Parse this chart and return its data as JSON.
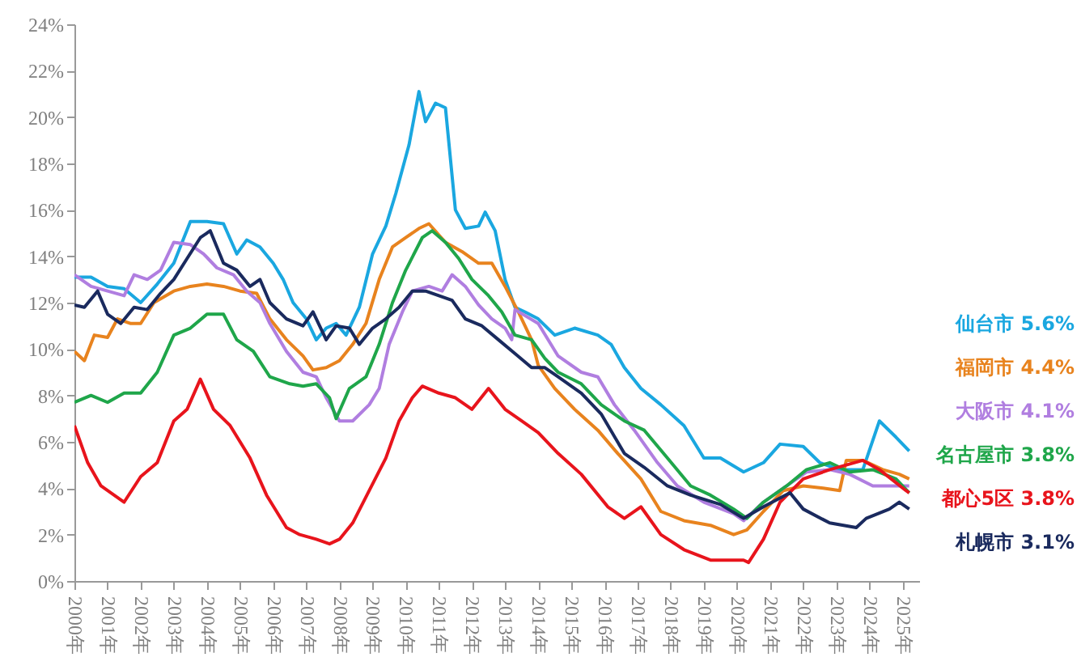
{
  "chart_data": {
    "type": "line",
    "xlim": [
      2000,
      2025.5
    ],
    "xticks": [
      {
        "value": 2000,
        "label": "2000年"
      },
      {
        "value": 2001,
        "label": "2001年"
      },
      {
        "value": 2002,
        "label": "2002年"
      },
      {
        "value": 2003,
        "label": "2003年"
      },
      {
        "value": 2004,
        "label": "2004年"
      },
      {
        "value": 2005,
        "label": "2005年"
      },
      {
        "value": 2006,
        "label": "2006年"
      },
      {
        "value": 2007,
        "label": "2007年"
      },
      {
        "value": 2008,
        "label": "2008年"
      },
      {
        "value": 2009,
        "label": "2009年"
      },
      {
        "value": 2010,
        "label": "2010年"
      },
      {
        "value": 2011,
        "label": "2011年"
      },
      {
        "value": 2012,
        "label": "2012年"
      },
      {
        "value": 2013,
        "label": "2013年"
      },
      {
        "value": 2014,
        "label": "2014年"
      },
      {
        "value": 2015,
        "label": "2015年"
      },
      {
        "value": 2016,
        "label": "2016年"
      },
      {
        "value": 2017,
        "label": "2017年"
      },
      {
        "value": 2018,
        "label": "2018年"
      },
      {
        "value": 2019,
        "label": "2019年"
      },
      {
        "value": 2020,
        "label": "2020年"
      },
      {
        "value": 2021,
        "label": "2021年"
      },
      {
        "value": 2022,
        "label": "2022年"
      },
      {
        "value": 2023,
        "label": "2023年"
      },
      {
        "value": 2024,
        "label": "2024年"
      },
      {
        "value": 2025,
        "label": "2025年"
      }
    ],
    "ylim": [
      0,
      24
    ],
    "yticks": [
      {
        "value": 0,
        "label": "0%"
      },
      {
        "value": 2,
        "label": "2%"
      },
      {
        "value": 4,
        "label": "4%"
      },
      {
        "value": 6,
        "label": "6%"
      },
      {
        "value": 8,
        "label": "8%"
      },
      {
        "value": 10,
        "label": "10%"
      },
      {
        "value": 12,
        "label": "12%"
      },
      {
        "value": 14,
        "label": "14%"
      },
      {
        "value": 16,
        "label": "16%"
      },
      {
        "value": 18,
        "label": "18%"
      },
      {
        "value": 20,
        "label": "20%"
      },
      {
        "value": 22,
        "label": "22%"
      },
      {
        "value": 24,
        "label": "24%"
      }
    ],
    "grid": false,
    "legend": false,
    "marker": "none",
    "line_style": "solid",
    "series": [
      {
        "name": "仙台市 5.6%",
        "color": "#1aa7e0",
        "x": [
          2000,
          2000.5,
          2001,
          2001.5,
          2002,
          2002.5,
          2003,
          2003.5,
          2004,
          2004.5,
          2004.9,
          2005.2,
          2005.6,
          2006,
          2006.3,
          2006.6,
          2007,
          2007.3,
          2007.6,
          2007.9,
          2008.2,
          2008.6,
          2009,
          2009.4,
          2009.7,
          2010.1,
          2010.4,
          2010.6,
          2010.9,
          2011.2,
          2011.5,
          2011.8,
          2012.2,
          2012.4,
          2012.7,
          2013,
          2013.3,
          2013.6,
          2014,
          2014.5,
          2015.1,
          2015.8,
          2016.2,
          2016.6,
          2017.1,
          2017.7,
          2018.4,
          2019,
          2019.5,
          2020.2,
          2020.8,
          2021.3,
          2022,
          2022.5,
          2023.1,
          2023.8,
          2024.3,
          2024.8,
          2025.2
        ],
        "values": [
          13.1,
          13.1,
          12.7,
          12.6,
          12.0,
          12.8,
          13.7,
          15.5,
          15.5,
          15.4,
          14.1,
          14.7,
          14.4,
          13.7,
          13.0,
          12.0,
          11.3,
          10.4,
          10.9,
          11.1,
          10.6,
          11.8,
          14.1,
          15.3,
          16.7,
          18.8,
          21.1,
          19.8,
          20.6,
          20.4,
          16.0,
          15.2,
          15.3,
          15.9,
          15.1,
          13.0,
          11.8,
          11.6,
          11.3,
          10.6,
          10.9,
          10.6,
          10.2,
          9.2,
          8.3,
          7.6,
          6.7,
          5.3,
          5.3,
          4.7,
          5.1,
          5.9,
          5.8,
          5.1,
          4.8,
          4.8,
          6.9,
          6.2,
          5.6
        ]
      },
      {
        "name": "福岡市 4.4%",
        "color": "#e8831e",
        "x": [
          2000,
          2000.3,
          2000.6,
          2001,
          2001.3,
          2001.7,
          2002,
          2002.4,
          2003,
          2003.5,
          2004,
          2004.5,
          2005,
          2005.5,
          2005.9,
          2006.4,
          2006.9,
          2007.2,
          2007.6,
          2008,
          2008.4,
          2008.8,
          2009.2,
          2009.6,
          2010,
          2010.4,
          2010.7,
          2011.2,
          2011.7,
          2012.2,
          2012.6,
          2013,
          2013.4,
          2013.8,
          2014,
          2014.5,
          2015.1,
          2015.8,
          2016.4,
          2017.1,
          2017.7,
          2018.4,
          2019.2,
          2019.9,
          2020.3,
          2020.8,
          2021.4,
          2022,
          2022.6,
          2023.1,
          2023.3,
          2023.8,
          2024.4,
          2024.9,
          2025.2
        ],
        "values": [
          9.9,
          9.5,
          10.6,
          10.5,
          11.3,
          11.1,
          11.1,
          12.0,
          12.5,
          12.7,
          12.8,
          12.7,
          12.5,
          12.4,
          11.3,
          10.4,
          9.7,
          9.1,
          9.2,
          9.5,
          10.2,
          11.1,
          13.0,
          14.4,
          14.8,
          15.2,
          15.4,
          14.6,
          14.2,
          13.7,
          13.7,
          12.7,
          11.6,
          10.4,
          9.3,
          8.3,
          7.4,
          6.5,
          5.5,
          4.4,
          3.0,
          2.6,
          2.4,
          2.0,
          2.2,
          3.0,
          3.9,
          4.1,
          4.0,
          3.9,
          5.2,
          5.2,
          4.8,
          4.6,
          4.4
        ]
      },
      {
        "name": "大阪市 4.1%",
        "color": "#b07ee0",
        "x": [
          2000,
          2000.5,
          2001,
          2001.5,
          2001.8,
          2002.2,
          2002.6,
          2003,
          2003.5,
          2003.9,
          2004.3,
          2004.8,
          2005.2,
          2005.6,
          2005.9,
          2006.4,
          2006.9,
          2007.3,
          2007.6,
          2008,
          2008.4,
          2008.9,
          2009.2,
          2009.5,
          2009.9,
          2010.2,
          2010.7,
          2011.1,
          2011.4,
          2011.8,
          2012.2,
          2012.6,
          2013,
          2013.2,
          2013.3,
          2014,
          2014.6,
          2015.3,
          2015.8,
          2016.3,
          2016.9,
          2017.6,
          2018.2,
          2019,
          2019.9,
          2020.2,
          2020.8,
          2021.5,
          2022.1,
          2022.8,
          2023.4,
          2024.1,
          2024.8,
          2025.2
        ],
        "values": [
          13.2,
          12.7,
          12.5,
          12.3,
          13.2,
          13.0,
          13.4,
          14.6,
          14.5,
          14.1,
          13.5,
          13.2,
          12.5,
          12.0,
          11.1,
          9.9,
          9.0,
          8.8,
          7.9,
          6.9,
          6.9,
          7.6,
          8.3,
          10.2,
          11.6,
          12.5,
          12.7,
          12.5,
          13.2,
          12.7,
          11.9,
          11.3,
          10.9,
          10.4,
          11.7,
          11.1,
          9.7,
          9.0,
          8.8,
          7.6,
          6.5,
          5.1,
          4.1,
          3.4,
          2.9,
          2.6,
          3.4,
          4.1,
          4.7,
          4.8,
          4.6,
          4.1,
          4.1,
          4.1
        ]
      },
      {
        "name": "名古屋市 3.8%",
        "color": "#1fa64a",
        "x": [
          2000,
          2000.5,
          2001,
          2001.5,
          2002,
          2002.5,
          2003,
          2003.5,
          2004,
          2004.5,
          2004.9,
          2005.4,
          2005.9,
          2006.5,
          2006.9,
          2007.3,
          2007.7,
          2007.9,
          2008.3,
          2008.8,
          2009.2,
          2009.6,
          2010,
          2010.5,
          2010.8,
          2011.2,
          2011.6,
          2012,
          2012.5,
          2012.9,
          2013.3,
          2013.8,
          2014.2,
          2014.6,
          2015.3,
          2015.9,
          2016.6,
          2017.2,
          2017.9,
          2018.6,
          2019.2,
          2019.9,
          2020.3,
          2020.8,
          2021.5,
          2022.1,
          2022.8,
          2023.4,
          2024.1,
          2024.8,
          2025.2
        ],
        "values": [
          7.7,
          8.0,
          7.7,
          8.1,
          8.1,
          9.0,
          10.6,
          10.9,
          11.5,
          11.5,
          10.4,
          9.9,
          8.8,
          8.5,
          8.4,
          8.5,
          7.9,
          7.0,
          8.3,
          8.8,
          10.2,
          12.0,
          13.4,
          14.8,
          15.1,
          14.6,
          13.9,
          13.0,
          12.3,
          11.6,
          10.6,
          10.4,
          9.6,
          9.0,
          8.5,
          7.6,
          6.9,
          6.5,
          5.3,
          4.1,
          3.7,
          3.1,
          2.7,
          3.4,
          4.1,
          4.8,
          5.1,
          4.7,
          4.8,
          4.4,
          3.8
        ]
      },
      {
        "name": "都心5区 3.8%",
        "color": "#e8141c",
        "x": [
          2000,
          2000.4,
          2000.8,
          2001.5,
          2002,
          2002.5,
          2003,
          2003.4,
          2003.8,
          2004.2,
          2004.7,
          2005.3,
          2005.8,
          2006.4,
          2006.8,
          2007.3,
          2007.7,
          2008,
          2008.4,
          2008.9,
          2009.4,
          2009.8,
          2010.2,
          2010.5,
          2011,
          2011.5,
          2012,
          2012.5,
          2013,
          2013.5,
          2014,
          2014.6,
          2015.3,
          2016.1,
          2016.6,
          2017.1,
          2017.7,
          2018.4,
          2019.2,
          2020.2,
          2020.35,
          2020.8,
          2021.3,
          2022,
          2022.8,
          2023.8,
          2024.3,
          2025.1,
          2025.2
        ],
        "values": [
          6.7,
          5.1,
          4.1,
          3.4,
          4.5,
          5.1,
          6.9,
          7.4,
          8.7,
          7.4,
          6.7,
          5.3,
          3.7,
          2.3,
          2.0,
          1.8,
          1.6,
          1.8,
          2.5,
          3.9,
          5.3,
          6.9,
          7.9,
          8.4,
          8.1,
          7.9,
          7.4,
          8.3,
          7.4,
          6.9,
          6.4,
          5.5,
          4.6,
          3.2,
          2.7,
          3.2,
          2.0,
          1.35,
          0.9,
          0.9,
          0.8,
          1.8,
          3.4,
          4.4,
          4.8,
          5.2,
          4.8,
          3.9,
          3.8
        ]
      },
      {
        "name": "札幌市 3.1%",
        "color": "#1a2a5e",
        "x": [
          2000,
          2000.3,
          2000.7,
          2001,
          2001.4,
          2001.8,
          2002.2,
          2002.6,
          2003,
          2003.4,
          2003.8,
          2004.1,
          2004.5,
          2004.9,
          2005.3,
          2005.6,
          2005.9,
          2006.4,
          2006.9,
          2007.2,
          2007.6,
          2007.9,
          2008.3,
          2008.6,
          2009,
          2009.4,
          2009.8,
          2010.2,
          2010.6,
          2011,
          2011.4,
          2011.8,
          2012.3,
          2012.8,
          2013.3,
          2013.8,
          2014.2,
          2014.6,
          2015.3,
          2015.9,
          2016.6,
          2017.2,
          2017.9,
          2018.6,
          2019.5,
          2020.2,
          2020.8,
          2021.6,
          2022,
          2022.8,
          2023.6,
          2023.9,
          2024.6,
          2024.9,
          2025.2
        ],
        "values": [
          11.9,
          11.8,
          12.5,
          11.5,
          11.1,
          11.8,
          11.7,
          12.4,
          13.0,
          13.9,
          14.8,
          15.1,
          13.7,
          13.4,
          12.7,
          13.0,
          12.0,
          11.3,
          11.0,
          11.6,
          10.4,
          11.0,
          10.9,
          10.2,
          10.9,
          11.3,
          11.8,
          12.5,
          12.5,
          12.3,
          12.1,
          11.3,
          11.0,
          10.4,
          9.8,
          9.2,
          9.2,
          8.8,
          8.1,
          7.2,
          5.5,
          4.9,
          4.1,
          3.7,
          3.3,
          2.7,
          3.2,
          3.8,
          3.1,
          2.5,
          2.3,
          2.7,
          3.1,
          3.4,
          3.1
        ]
      }
    ]
  }
}
